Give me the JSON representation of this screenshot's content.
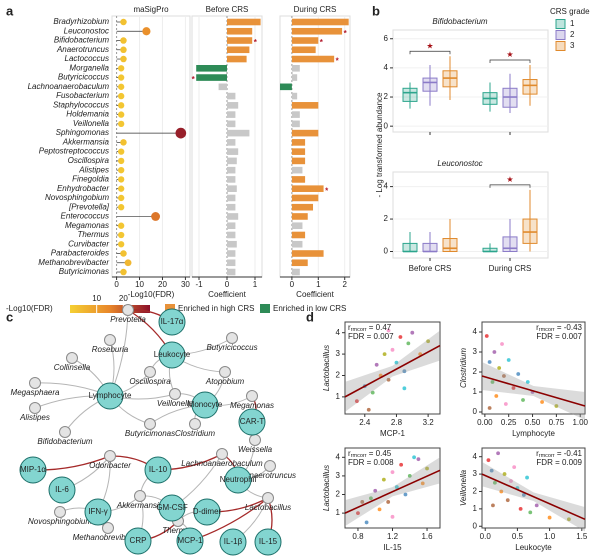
{
  "panel_labels": [
    "a",
    "b",
    "c",
    "d"
  ],
  "chart_data": [
    {
      "type": "lollipop",
      "title": "maSigPro",
      "categories": [
        "Bradyrhizobium",
        "Leuconostoc",
        "Bifidobacterium",
        "Anaerotruncus",
        "Lactococcus",
        "Morganella",
        "Butyricicoccus",
        "Lachnoanaerobaculum",
        "Fusobacterium",
        "Staphylococcus",
        "Holdemania",
        "Veillonella",
        "Sphingomonas",
        "Akkermansia",
        "Peptostreptococcus",
        "Oscillospira",
        "Alistipes",
        "Finegoldia",
        "Enhydrobacter",
        "Novosphingobium",
        "[Prevotella]",
        "Enterococcus",
        "Megamonas",
        "Thermus",
        "Curvibacter",
        "Parabacteroides",
        "Methanobrevibacter",
        "Butyricimonas"
      ],
      "values": [
        3,
        13,
        3,
        3,
        3,
        2,
        2,
        2,
        2,
        2,
        2,
        2,
        28,
        3,
        2,
        2,
        2,
        2,
        2,
        2,
        2,
        17,
        2,
        2,
        2,
        3,
        5,
        3
      ],
      "xlim": [
        -2,
        32
      ],
      "xticks": [
        0,
        10,
        20,
        30
      ],
      "xlabel": "-Log10(FDR)",
      "legend_title": "-Log10(FDR)",
      "colorscale": [
        "#f5d033",
        "#e8862a",
        "#8b0f2a"
      ],
      "clim": [
        0,
        30
      ],
      "cticks": [
        10,
        20
      ]
    },
    {
      "type": "bar",
      "title": "Before CRS",
      "values": [
        1.2,
        0.9,
        0.9,
        0.8,
        0.7,
        -1.1,
        -1.1,
        -0.3,
        0.3,
        0.4,
        0.3,
        0.3,
        0.8,
        0.3,
        0.4,
        0.35,
        0.3,
        0.3,
        0.35,
        0.3,
        0.3,
        0.4,
        0.3,
        0.3,
        0.35,
        0.3,
        0.3,
        0.3
      ],
      "colors": [
        "#e8923a",
        "#e8923a",
        "#e8923a",
        "#e8923a",
        "#e8923a",
        "#2e8b57",
        "#2e8b57",
        "#c8c8c8",
        "#c8c8c8",
        "#c8c8c8",
        "#c8c8c8",
        "#c8c8c8",
        "#c8c8c8",
        "#c8c8c8",
        "#c8c8c8",
        "#c8c8c8",
        "#c8c8c8",
        "#c8c8c8",
        "#c8c8c8",
        "#c8c8c8",
        "#c8c8c8",
        "#c8c8c8",
        "#c8c8c8",
        "#c8c8c8",
        "#c8c8c8",
        "#c8c8c8",
        "#c8c8c8",
        "#c8c8c8"
      ],
      "value_marks": [
        null,
        null,
        "*",
        null,
        null,
        null,
        "*",
        null,
        null,
        null,
        null,
        null,
        null,
        null,
        null,
        null,
        null,
        null,
        null,
        null,
        null,
        null,
        null,
        null,
        null,
        null,
        null,
        null
      ],
      "xlim": [
        -1.25,
        1.25
      ],
      "xticks": [
        -1,
        0,
        1
      ],
      "xlabel": "Coefficient",
      "legend": [
        {
          "name": "Enriched in high CRS",
          "color": "#e8923a"
        },
        {
          "name": "Enriched in low CRS",
          "color": "#2e8b57"
        }
      ]
    },
    {
      "type": "bar",
      "title": "During CRS",
      "values": [
        2.15,
        1.9,
        1.0,
        0.9,
        1.6,
        0.3,
        0.2,
        -0.45,
        0.2,
        1.0,
        0.3,
        0.3,
        1.0,
        0.5,
        0.5,
        0.5,
        0.4,
        0.5,
        1.2,
        1.0,
        0.8,
        0.6,
        0.4,
        0.5,
        0.4,
        1.2,
        0.6,
        0.3
      ],
      "colors": [
        "#e8923a",
        "#e8923a",
        "#e8923a",
        "#e8923a",
        "#e8923a",
        "#c8c8c8",
        "#c8c8c8",
        "#2e8b57",
        "#c8c8c8",
        "#e8923a",
        "#c8c8c8",
        "#c8c8c8",
        "#e8923a",
        "#e8923a",
        "#e8923a",
        "#e8923a",
        "#c8c8c8",
        "#e8923a",
        "#e8923a",
        "#e8923a",
        "#e8923a",
        "#e8923a",
        "#c8c8c8",
        "#e8923a",
        "#c8c8c8",
        "#e8923a",
        "#e8923a",
        "#c8c8c8"
      ],
      "value_marks": [
        null,
        "*",
        "*",
        null,
        "*",
        null,
        null,
        null,
        null,
        null,
        null,
        null,
        null,
        null,
        null,
        null,
        null,
        null,
        "*",
        null,
        null,
        null,
        null,
        null,
        null,
        null,
        null,
        null
      ],
      "xlim": [
        -0.45,
        2.2
      ],
      "xticks": [
        0,
        1,
        2
      ],
      "xlabel": "Coefficient"
    },
    {
      "type": "box",
      "title": "Bifidobacterium",
      "ylim": [
        -0.4,
        6.6
      ],
      "yticks": [
        0,
        2,
        4,
        6
      ],
      "series": [
        {
          "name": "1",
          "color": "#2ca58d",
          "values": [
            {
              "min": 1.2,
              "q1": 1.7,
              "median": 2.3,
              "q3": 2.6,
              "max": 3.0
            },
            {
              "min": 1.0,
              "q1": 1.5,
              "median": 1.9,
              "q3": 2.3,
              "max": 3.0
            }
          ]
        },
        {
          "name": "2",
          "color": "#8b7bc8",
          "values": [
            {
              "min": 1.4,
              "q1": 2.4,
              "median": 3.0,
              "q3": 3.3,
              "max": 4.2
            },
            {
              "min": 0.9,
              "q1": 1.3,
              "median": 2.0,
              "q3": 2.6,
              "max": 3.6
            }
          ]
        },
        {
          "name": "3",
          "color": "#e08a2c",
          "values": [
            {
              "min": 1.8,
              "q1": 2.7,
              "median": 3.3,
              "q3": 3.8,
              "max": 4.8
            },
            {
              "min": 1.4,
              "q1": 2.2,
              "median": 2.8,
              "q3": 3.2,
              "max": 4.2
            }
          ]
        }
      ],
      "stars": [
        "★",
        "★"
      ]
    },
    {
      "type": "box",
      "title": "Leuconostoc",
      "categories": [
        "Before CRS",
        "During CRS"
      ],
      "ylim": [
        -0.4,
        4.9
      ],
      "yticks": [
        0,
        2,
        4
      ],
      "series": [
        {
          "name": "1",
          "color": "#2ca58d",
          "values": [
            {
              "min": 0,
              "q1": 0,
              "median": 0,
              "q3": 0.5,
              "max": 1.2
            },
            {
              "min": 0,
              "q1": 0,
              "median": 0,
              "q3": 0.2,
              "max": 0.5
            }
          ]
        },
        {
          "name": "2",
          "color": "#8b7bc8",
          "values": [
            {
              "min": 0,
              "q1": 0,
              "median": 0,
              "q3": 0.5,
              "max": 1.2
            },
            {
              "min": 0,
              "q1": 0,
              "median": 0.2,
              "q3": 0.9,
              "max": 2.0
            }
          ]
        },
        {
          "name": "3",
          "color": "#e08a2c",
          "values": [
            {
              "min": 0,
              "q1": 0,
              "median": 0.2,
              "q3": 0.8,
              "max": 2.0
            },
            {
              "min": 0,
              "q1": 0.5,
              "median": 1.2,
              "q3": 2.0,
              "max": 3.8
            }
          ]
        }
      ],
      "stars": [
        null,
        "★"
      ]
    },
    {
      "type": "scatter",
      "ylabel": "Lactobacillus",
      "xlabel": "MCP-1",
      "xlim": [
        2.15,
        3.35
      ],
      "xticks": [
        2.4,
        2.8,
        3.2
      ],
      "ylim": [
        0.2,
        4.5
      ],
      "yticks": [
        1,
        2,
        3,
        4
      ],
      "x": [
        2.3,
        2.4,
        2.5,
        2.55,
        2.6,
        2.65,
        2.7,
        2.75,
        2.8,
        2.85,
        2.9,
        2.95,
        3.0,
        3.1,
        3.2,
        2.45,
        2.7,
        2.9
      ],
      "y": [
        0.8,
        1.5,
        1.2,
        2.5,
        2.0,
        3.0,
        1.8,
        3.2,
        2.6,
        3.8,
        2.2,
        3.5,
        4.0,
        3.0,
        3.6,
        0.4,
        4.1,
        1.4
      ],
      "fit": [
        1.0,
        3.4
      ],
      "stat": {
        "symbol": "r",
        "sub": "rmcorr",
        "r": " = 0.47",
        "fdr": "FDR = 0.007"
      },
      "stat_corner": "left"
    },
    {
      "type": "scatter",
      "ylabel": "Clostridium",
      "xlabel": "Lymphocyte",
      "xlim": [
        -0.03,
        1.05
      ],
      "xticks": [
        {
          "value": 0,
          "label": "0.00"
        },
        {
          "value": 0.25,
          "label": "0.25"
        },
        {
          "value": 0.5,
          "label": "0.50"
        },
        {
          "value": 0.75,
          "label": "0.75"
        },
        {
          "value": 1,
          "label": "1.00"
        }
      ],
      "ylim": [
        -0.1,
        4.5
      ],
      "yticks": [
        0,
        1,
        2,
        3,
        4
      ],
      "x": [
        0.02,
        0.05,
        0.08,
        0.1,
        0.12,
        0.15,
        0.2,
        0.22,
        0.25,
        0.3,
        0.35,
        0.4,
        0.5,
        0.6,
        0.75,
        0.05,
        0.18,
        0.45
      ],
      "y": [
        3.8,
        2.5,
        1.5,
        3.0,
        0.8,
        2.2,
        1.8,
        0.4,
        2.6,
        1.2,
        1.9,
        0.6,
        1.0,
        0.5,
        0.3,
        0.2,
        3.4,
        1.5
      ],
      "fit": [
        1.8,
        0.3
      ],
      "stat": {
        "symbol": "r",
        "sub": "rmcorr",
        "r": " = -0.43",
        "fdr": "FDR = 0.007"
      },
      "stat_corner": "right"
    },
    {
      "type": "scatter",
      "ylabel": "Lactobacillus",
      "xlabel": "IL-15",
      "xlim": [
        0.65,
        1.75
      ],
      "xticks": [
        0.8,
        1.2,
        1.6
      ],
      "ylim": [
        0.2,
        4.5
      ],
      "yticks": [
        1,
        2,
        3,
        4
      ],
      "x": [
        0.8,
        0.9,
        0.95,
        1.0,
        1.05,
        1.1,
        1.15,
        1.2,
        1.25,
        1.3,
        1.35,
        1.4,
        1.5,
        1.55,
        1.6,
        0.85,
        1.2,
        1.45
      ],
      "y": [
        1.0,
        0.5,
        1.8,
        2.2,
        1.2,
        2.8,
        1.6,
        3.2,
        2.4,
        3.6,
        2.0,
        3.0,
        3.9,
        2.6,
        3.4,
        1.6,
        0.8,
        4.0
      ],
      "fit": [
        1.0,
        3.3
      ],
      "stat": {
        "symbol": "r",
        "sub": "rmcorr",
        "r": " = 0.45",
        "fdr": "FDR = 0.008"
      },
      "stat_corner": "left"
    },
    {
      "type": "scatter",
      "ylabel": "Veillonella",
      "xlabel": "Leukocyte",
      "xlim": [
        -0.05,
        1.55
      ],
      "xticks": [
        {
          "value": 0,
          "label": "0.0"
        },
        {
          "value": 0.5,
          "label": "0.5"
        },
        {
          "value": 1,
          "label": "1.0"
        },
        {
          "value": 1.5,
          "label": "1.5"
        }
      ],
      "ylim": [
        -0.1,
        4.5
      ],
      "yticks": [
        0,
        1,
        2,
        3,
        4
      ],
      "x": [
        0.05,
        0.1,
        0.15,
        0.2,
        0.25,
        0.3,
        0.35,
        0.4,
        0.5,
        0.55,
        0.6,
        0.7,
        0.8,
        1.0,
        1.3,
        0.12,
        0.45,
        0.65
      ],
      "y": [
        3.8,
        3.2,
        2.5,
        4.2,
        2.0,
        3.0,
        1.5,
        2.6,
        2.2,
        1.0,
        1.8,
        0.8,
        1.2,
        0.5,
        0.4,
        1.2,
        3.4,
        2.8
      ],
      "fit": [
        3.0,
        0.4
      ],
      "stat": {
        "symbol": "r",
        "sub": "rmcorr",
        "r": " = -0.41",
        "fdr": "FDR = 0.009"
      },
      "stat_corner": "right"
    }
  ],
  "box_legend_title": "CRS grade",
  "box_ylabel": "- Log transformed abundance",
  "point_colors": [
    "#e41a1c",
    "#377eb8",
    "#4daf4a",
    "#984ea3",
    "#ff7f00",
    "#a6a600",
    "#a65628",
    "#f781bf",
    "#17becf"
  ],
  "network": {
    "hosts": [
      "IL-17α",
      "Leukocyte",
      "Lymphocyte",
      "Monocyte",
      "CAR-T",
      "MIP-1α",
      "IL-6",
      "IFN-γ",
      "IL-10",
      "GM-CSF",
      "D-dimer",
      "Neutrophil",
      "CRP",
      "MCP-1",
      "IL-1β",
      "IL-15"
    ],
    "taxa": [
      "Prevotella",
      "Roseburia",
      "Butyricicoccus",
      "Collinsella",
      "Oscillospira",
      "Atopobium",
      "Megasphaera",
      "Megamonas",
      "Veillonella",
      "Alistipes",
      "Butyricimonas",
      "Clostridium",
      "Bifidobacterium",
      "Weissella",
      "Odoribacter",
      "Lachnoanaerobaculum",
      "Anaerotruncus",
      "Novosphingobium",
      "Akkermansia",
      "Lactobacillus",
      "Methanobrevibacter",
      "Thermus"
    ]
  }
}
